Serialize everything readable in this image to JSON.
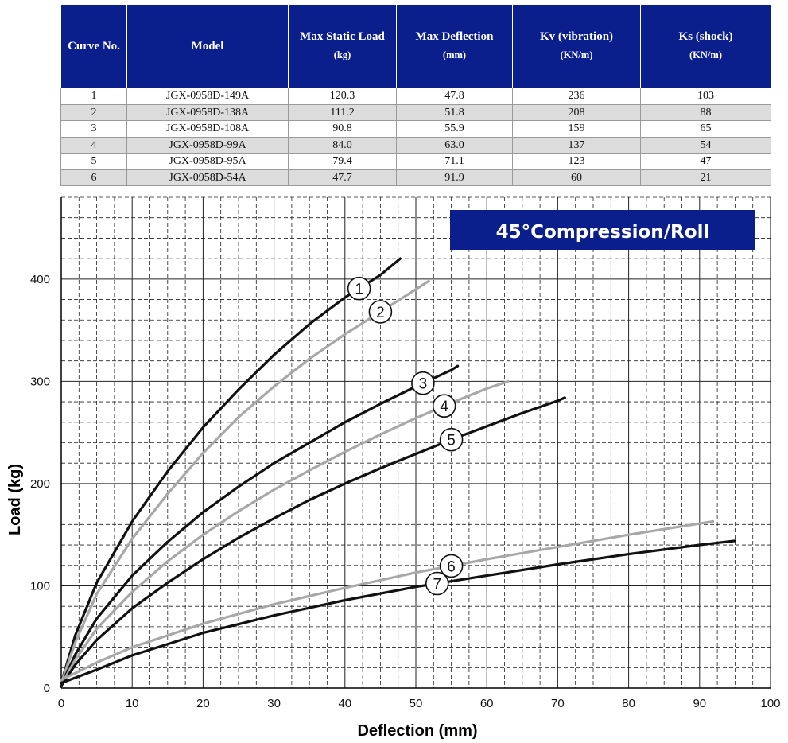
{
  "table": {
    "headers": [
      {
        "label": "Curve No.",
        "unit": ""
      },
      {
        "label": "Model",
        "unit": ""
      },
      {
        "label": "Max Static Load",
        "unit": "(kg)"
      },
      {
        "label": "Max Deflection",
        "unit": "(mm)"
      },
      {
        "label": "Kv (vibration)",
        "unit": "(KN/m)"
      },
      {
        "label": "Ks (shock)",
        "unit": "(KN/m)"
      }
    ],
    "rows": [
      [
        "1",
        "JGX-0958D-149A",
        "120.3",
        "47.8",
        "236",
        "103"
      ],
      [
        "2",
        "JGX-0958D-138A",
        "111.2",
        "51.8",
        "208",
        "88"
      ],
      [
        "3",
        "JGX-0958D-108A",
        "90.8",
        "55.9",
        "159",
        "65"
      ],
      [
        "4",
        "JGX-0958D-99A",
        "84.0",
        "63.0",
        "137",
        "54"
      ],
      [
        "5",
        "JGX-0958D-95A",
        "79.4",
        "71.1",
        "123",
        "47"
      ],
      [
        "6",
        "JGX-0958D-54A",
        "47.7",
        "91.9",
        "60",
        "21"
      ]
    ],
    "header_color": "#0a1e8c",
    "stripe_color": "#dcdcdc"
  },
  "chart_data": {
    "type": "line",
    "title": "45°Compression/Roll",
    "xlabel": "Deflection (mm)",
    "ylabel": "Load (kg)",
    "xlim": [
      0,
      100
    ],
    "ylim": [
      0,
      480
    ],
    "x_ticks": [
      0,
      10,
      20,
      30,
      40,
      50,
      60,
      70,
      80,
      90,
      100
    ],
    "y_ticks": [
      0,
      100,
      200,
      300,
      400
    ],
    "grid": true,
    "badge_color": "#0a1e8c",
    "series": [
      {
        "name": "1",
        "color": "#111111",
        "points": [
          [
            0,
            5
          ],
          [
            2,
            52
          ],
          [
            5,
            103
          ],
          [
            10,
            163
          ],
          [
            15,
            212
          ],
          [
            20,
            255
          ],
          [
            25,
            292
          ],
          [
            30,
            326
          ],
          [
            35,
            356
          ],
          [
            40,
            382
          ],
          [
            45,
            404
          ],
          [
            47.8,
            420
          ]
        ],
        "marker_at": 42
      },
      {
        "name": "2",
        "color": "#a8a8a8",
        "points": [
          [
            0,
            5
          ],
          [
            2,
            45
          ],
          [
            5,
            92
          ],
          [
            10,
            146
          ],
          [
            15,
            190
          ],
          [
            20,
            230
          ],
          [
            25,
            265
          ],
          [
            30,
            295
          ],
          [
            35,
            322
          ],
          [
            40,
            346
          ],
          [
            45,
            368
          ],
          [
            50,
            390
          ],
          [
            51.8,
            398
          ]
        ],
        "marker_at": 45
      },
      {
        "name": "3",
        "color": "#111111",
        "points": [
          [
            0,
            3
          ],
          [
            2,
            33
          ],
          [
            5,
            68
          ],
          [
            10,
            110
          ],
          [
            15,
            143
          ],
          [
            20,
            172
          ],
          [
            25,
            197
          ],
          [
            30,
            220
          ],
          [
            35,
            240
          ],
          [
            40,
            260
          ],
          [
            45,
            278
          ],
          [
            50,
            295
          ],
          [
            55,
            311
          ],
          [
            55.9,
            315
          ]
        ],
        "marker_at": 51
      },
      {
        "name": "4",
        "color": "#a8a8a8",
        "points": [
          [
            0,
            3
          ],
          [
            2,
            28
          ],
          [
            5,
            58
          ],
          [
            10,
            94
          ],
          [
            15,
            124
          ],
          [
            20,
            150
          ],
          [
            25,
            173
          ],
          [
            30,
            194
          ],
          [
            35,
            213
          ],
          [
            40,
            231
          ],
          [
            45,
            248
          ],
          [
            50,
            264
          ],
          [
            55,
            279
          ],
          [
            60,
            293
          ],
          [
            63,
            300
          ]
        ],
        "marker_at": 54
      },
      {
        "name": "5",
        "color": "#111111",
        "points": [
          [
            0,
            2
          ],
          [
            2,
            23
          ],
          [
            5,
            47
          ],
          [
            10,
            78
          ],
          [
            15,
            103
          ],
          [
            20,
            126
          ],
          [
            25,
            147
          ],
          [
            30,
            166
          ],
          [
            35,
            184
          ],
          [
            40,
            200
          ],
          [
            45,
            215
          ],
          [
            50,
            229
          ],
          [
            55,
            243
          ],
          [
            60,
            256
          ],
          [
            65,
            269
          ],
          [
            70,
            281
          ],
          [
            71,
            284
          ]
        ],
        "marker_at": 55
      },
      {
        "name": "6",
        "color": "#a8a8a8",
        "points": [
          [
            0,
            8
          ],
          [
            5,
            25
          ],
          [
            10,
            40
          ],
          [
            20,
            63
          ],
          [
            30,
            82
          ],
          [
            40,
            98
          ],
          [
            50,
            113
          ],
          [
            60,
            126
          ],
          [
            70,
            138
          ],
          [
            80,
            150
          ],
          [
            91.9,
            163
          ]
        ],
        "marker_at": 55
      },
      {
        "name": "7",
        "color": "#111111",
        "points": [
          [
            0,
            5
          ],
          [
            5,
            18
          ],
          [
            10,
            32
          ],
          [
            20,
            54
          ],
          [
            30,
            71
          ],
          [
            40,
            86
          ],
          [
            50,
            99
          ],
          [
            60,
            110
          ],
          [
            70,
            121
          ],
          [
            80,
            131
          ],
          [
            90,
            140
          ],
          [
            95,
            144
          ]
        ],
        "marker_at": 53
      }
    ]
  }
}
